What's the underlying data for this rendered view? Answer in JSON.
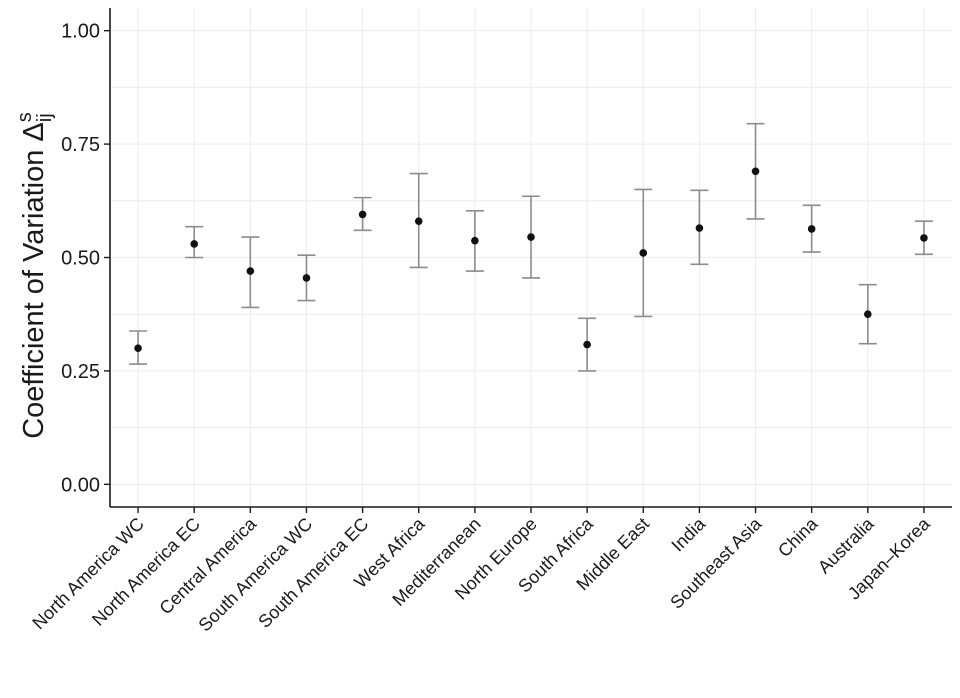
{
  "chart_data": {
    "type": "scatter",
    "subtype": "point-with-errorbars",
    "title": "",
    "xlabel": "",
    "ylabel": {
      "main": "Coefficient of Variation ",
      "symbol": "Δ",
      "superscript": "s",
      "subscript": "ij"
    },
    "ylim": [
      -0.05,
      1.05
    ],
    "yticks": [
      0.0,
      0.25,
      0.5,
      0.75,
      1.0
    ],
    "ytick_labels": [
      "0.00",
      "0.25",
      "0.50",
      "0.75",
      "1.00"
    ],
    "grid": true,
    "legend": "none",
    "categories": [
      "North America WC",
      "North America EC",
      "Central America",
      "South America WC",
      "South America EC",
      "West Africa",
      "Mediterranean",
      "North Europe",
      "South Africa",
      "Middle East",
      "India",
      "Southeast Asia",
      "China",
      "Australia",
      "Japan–Korea"
    ],
    "values": [
      0.3,
      0.53,
      0.47,
      0.455,
      0.595,
      0.58,
      0.537,
      0.545,
      0.308,
      0.51,
      0.565,
      0.69,
      0.563,
      0.375,
      0.543
    ],
    "lower": [
      0.265,
      0.5,
      0.39,
      0.405,
      0.56,
      0.478,
      0.47,
      0.455,
      0.25,
      0.37,
      0.485,
      0.585,
      0.512,
      0.31,
      0.507
    ],
    "upper": [
      0.338,
      0.568,
      0.545,
      0.505,
      0.632,
      0.685,
      0.603,
      0.635,
      0.366,
      0.65,
      0.648,
      0.795,
      0.615,
      0.44,
      0.58
    ],
    "colors": {
      "point": "#111111",
      "errorbar": "#8c8c8c",
      "grid": "#ececec",
      "axis": "#1a1a1a"
    }
  }
}
